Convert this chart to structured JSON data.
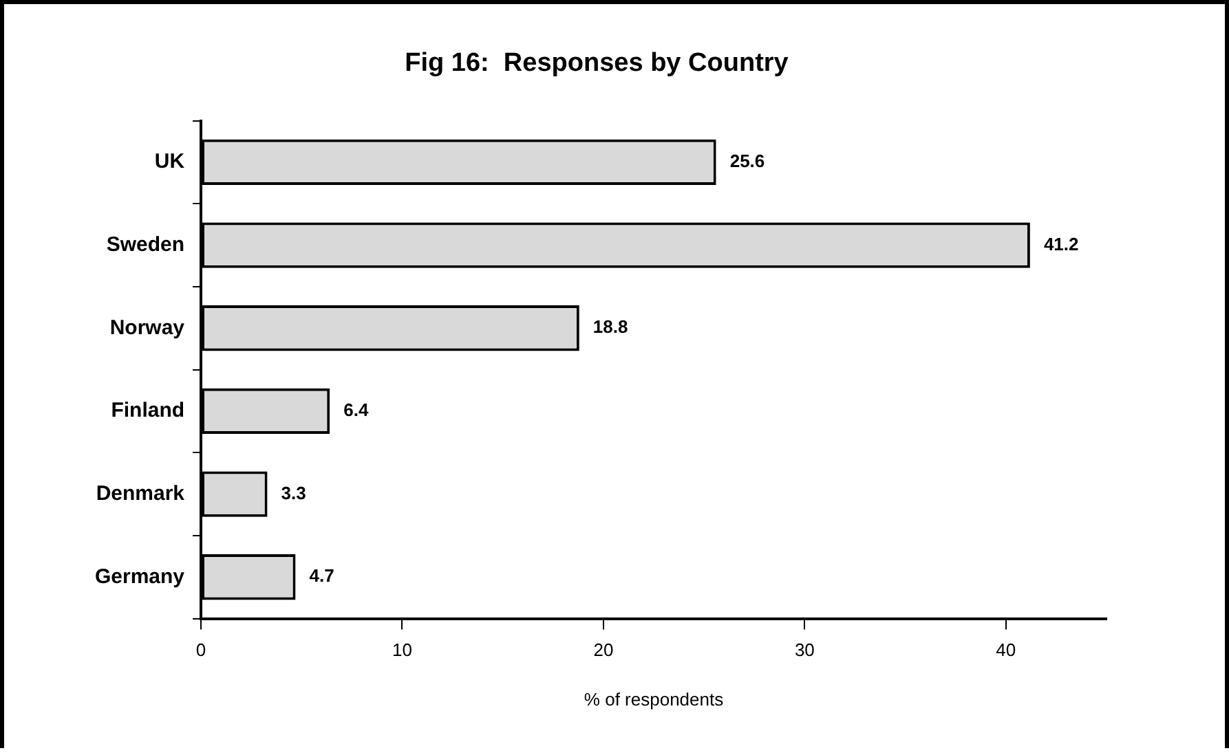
{
  "chart_data": {
    "type": "bar",
    "orientation": "horizontal",
    "title": "Fig 16:  Responses by Country",
    "xlabel": "% of respondents",
    "categories": [
      "UK",
      "Sweden",
      "Norway",
      "Finland",
      "Denmark",
      "Germany"
    ],
    "values": [
      25.6,
      41.2,
      18.8,
      6.4,
      3.3,
      4.7
    ],
    "color": "#d9d9d9",
    "xlim": [
      0,
      45
    ],
    "xticks": [
      0,
      10,
      20,
      30,
      40
    ],
    "grid": false,
    "legend": false,
    "data_labels": true
  }
}
